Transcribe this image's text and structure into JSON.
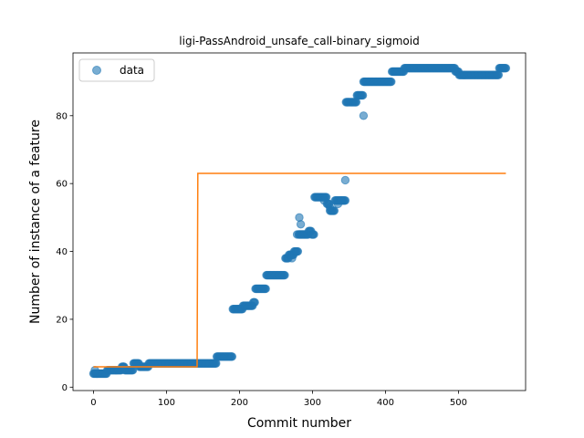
{
  "chart_data": {
    "type": "scatter",
    "title": "ligi-PassAndroid_unsafe_call-binary_sigmoid",
    "xlabel": "Commit number",
    "ylabel": "Number of instance of a feature",
    "xlim": [
      -28,
      592
    ],
    "ylim": [
      -1,
      98.5
    ],
    "xticks": [
      0,
      100,
      200,
      300,
      400,
      500
    ],
    "yticks": [
      0,
      20,
      40,
      60,
      80
    ],
    "legend": {
      "position": "top-left",
      "entries": [
        "data"
      ]
    },
    "colors": {
      "data": "#1f77b4",
      "fit": "#ff7f0e"
    },
    "series": [
      {
        "name": "data",
        "kind": "scatter",
        "segments": [
          [
            0,
            5,
            4
          ],
          [
            5,
            8,
            4
          ],
          [
            9,
            18,
            4
          ],
          [
            19,
            25,
            5
          ],
          [
            26,
            38,
            5
          ],
          [
            39,
            42,
            6
          ],
          [
            43,
            54,
            5
          ],
          [
            55,
            62,
            7
          ],
          [
            63,
            75,
            6
          ],
          [
            76,
            148,
            7
          ],
          [
            149,
            168,
            7
          ],
          [
            169,
            190,
            9
          ],
          [
            191,
            204,
            23
          ],
          [
            205,
            218,
            24
          ],
          [
            219,
            221,
            25
          ],
          [
            222,
            236,
            29
          ],
          [
            237,
            262,
            33
          ],
          [
            263,
            267,
            38
          ],
          [
            268,
            274,
            39
          ],
          [
            275,
            280,
            40
          ],
          [
            281,
            282,
            45
          ],
          [
            283,
            294,
            45
          ],
          [
            295,
            298,
            46
          ],
          [
            299,
            302,
            45
          ],
          [
            303,
            319,
            56
          ],
          [
            320,
            323,
            54
          ],
          [
            324,
            330,
            52
          ],
          [
            331,
            345,
            55
          ],
          [
            346,
            360,
            84
          ],
          [
            361,
            369,
            86
          ],
          [
            370,
            408,
            90
          ],
          [
            409,
            425,
            93
          ],
          [
            426,
            495,
            94
          ],
          [
            496,
            500,
            93
          ],
          [
            501,
            555,
            92
          ],
          [
            556,
            565,
            94
          ]
        ],
        "points": [
          [
            2,
            5
          ],
          [
            41,
            6
          ],
          [
            272,
            38
          ],
          [
            279,
            45
          ],
          [
            282,
            50
          ],
          [
            284,
            48
          ],
          [
            316,
            55
          ],
          [
            324,
            53
          ],
          [
            335,
            54
          ],
          [
            340,
            55
          ],
          [
            345,
            61
          ],
          [
            370,
            80
          ]
        ]
      },
      {
        "name": "",
        "kind": "step",
        "x": [
          0,
          142,
          143,
          565
        ],
        "y": [
          6,
          6,
          63,
          63
        ]
      }
    ]
  }
}
